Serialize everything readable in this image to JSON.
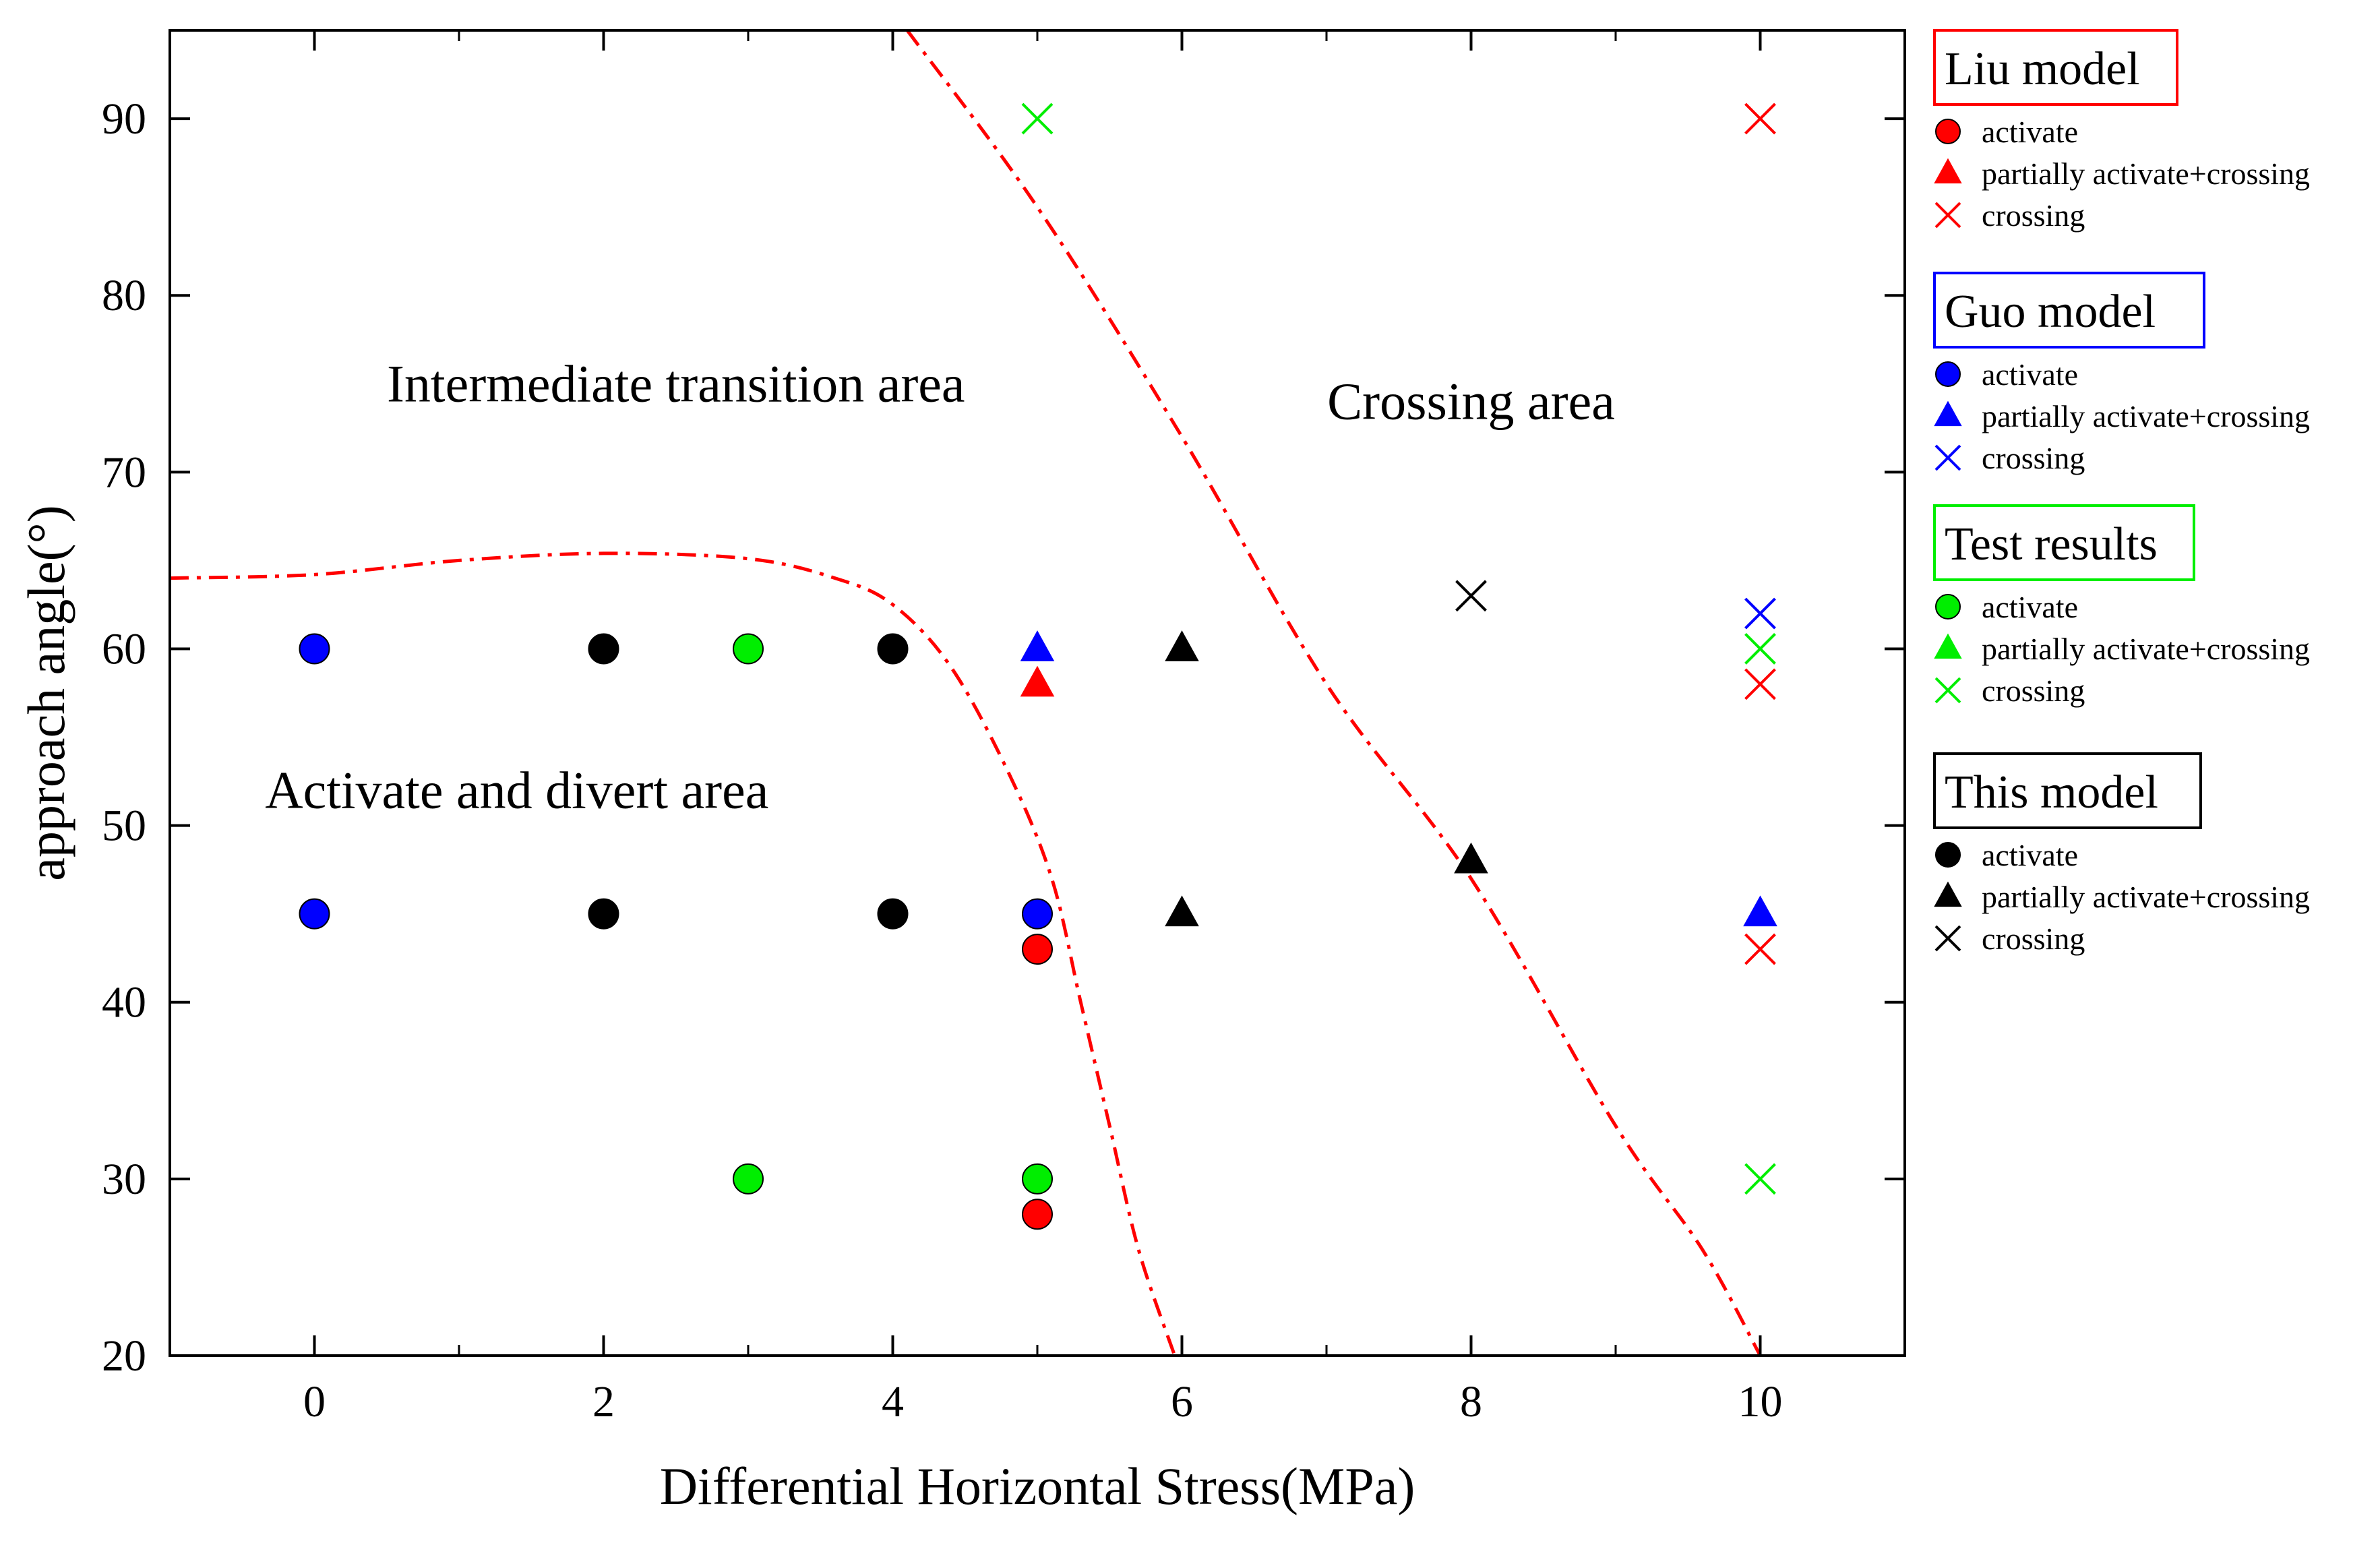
{
  "chart_data": {
    "type": "scatter",
    "xlabel": "Differential Horizontal Stress(MPa)",
    "ylabel": "approach angle(°)",
    "xlim": [
      -1,
      11
    ],
    "ylim": [
      20,
      95
    ],
    "xticks": [
      "0",
      "2",
      "4",
      "6",
      "8",
      "10"
    ],
    "yticks": [
      "20",
      "30",
      "40",
      "50",
      "60",
      "70",
      "80",
      "90"
    ],
    "colors": {
      "liu": "#ff0000",
      "guo": "#0000ff",
      "test": "#00ee00",
      "this": "#000000",
      "boundary": "#ff0000"
    },
    "regions": [
      {
        "label": "Intermediate transition area",
        "x": 2.5,
        "y": 74
      },
      {
        "label": "Crossing area",
        "x": 8.0,
        "y": 73
      },
      {
        "label": "Activate and divert area",
        "x": 1.4,
        "y": 51
      }
    ],
    "boundaries": [
      {
        "name": "activate boundary",
        "points": [
          [
            -1,
            64
          ],
          [
            0,
            64.2
          ],
          [
            1,
            65
          ],
          [
            2,
            65.4
          ],
          [
            3,
            65.1
          ],
          [
            3.6,
            64
          ],
          [
            4,
            62.5
          ],
          [
            4.4,
            59
          ],
          [
            4.8,
            53
          ],
          [
            5.1,
            47
          ],
          [
            5.3,
            40
          ],
          [
            5.5,
            33
          ],
          [
            5.7,
            26
          ],
          [
            5.95,
            20
          ]
        ]
      },
      {
        "name": "crossing boundary",
        "points": [
          [
            4.1,
            95
          ],
          [
            5,
            85
          ],
          [
            6,
            72
          ],
          [
            7,
            58
          ],
          [
            8,
            47
          ],
          [
            9,
            33
          ],
          [
            9.6,
            26
          ],
          [
            10,
            20
          ]
        ]
      }
    ],
    "series": [
      {
        "name": "Liu model",
        "group": "liu",
        "points": [
          {
            "x": 10,
            "y": 90,
            "marker": "crossing"
          },
          {
            "x": 5,
            "y": 58,
            "marker": "partial"
          },
          {
            "x": 10,
            "y": 58,
            "marker": "crossing"
          },
          {
            "x": 5,
            "y": 43,
            "marker": "activate"
          },
          {
            "x": 10,
            "y": 43,
            "marker": "crossing"
          },
          {
            "x": 5,
            "y": 28,
            "marker": "activate"
          }
        ]
      },
      {
        "name": "Guo model",
        "group": "guo",
        "points": [
          {
            "x": 0,
            "y": 60,
            "marker": "activate"
          },
          {
            "x": 0,
            "y": 45,
            "marker": "activate"
          },
          {
            "x": 5,
            "y": 60,
            "marker": "partial"
          },
          {
            "x": 5,
            "y": 45,
            "marker": "activate"
          },
          {
            "x": 10,
            "y": 62,
            "marker": "crossing"
          },
          {
            "x": 10,
            "y": 45,
            "marker": "partial"
          }
        ]
      },
      {
        "name": "Test results",
        "group": "test",
        "points": [
          {
            "x": 5,
            "y": 90,
            "marker": "crossing"
          },
          {
            "x": 3,
            "y": 60,
            "marker": "activate"
          },
          {
            "x": 10,
            "y": 60,
            "marker": "crossing"
          },
          {
            "x": 3,
            "y": 30,
            "marker": "activate"
          },
          {
            "x": 5,
            "y": 30,
            "marker": "activate"
          },
          {
            "x": 10,
            "y": 30,
            "marker": "crossing"
          }
        ]
      },
      {
        "name": "This model",
        "group": "this",
        "points": [
          {
            "x": 2,
            "y": 60,
            "marker": "activate"
          },
          {
            "x": 4,
            "y": 60,
            "marker": "activate"
          },
          {
            "x": 6,
            "y": 60,
            "marker": "partial"
          },
          {
            "x": 2,
            "y": 45,
            "marker": "activate"
          },
          {
            "x": 4,
            "y": 45,
            "marker": "activate"
          },
          {
            "x": 6,
            "y": 45,
            "marker": "partial"
          },
          {
            "x": 8,
            "y": 48,
            "marker": "partial"
          },
          {
            "x": 8,
            "y": 63,
            "marker": "crossing"
          }
        ]
      }
    ],
    "legend": {
      "placement": "right",
      "groups": [
        {
          "title": "Liu model",
          "color_key": "liu",
          "items": [
            {
              "marker": "activate",
              "label": "activate"
            },
            {
              "marker": "partial",
              "label": "partially activate+crossing"
            },
            {
              "marker": "crossing",
              "label": "crossing"
            }
          ]
        },
        {
          "title": "Guo model",
          "color_key": "guo",
          "items": [
            {
              "marker": "activate",
              "label": "activate"
            },
            {
              "marker": "partial",
              "label": "partially activate+crossing"
            },
            {
              "marker": "crossing",
              "label": "crossing"
            }
          ]
        },
        {
          "title": "Test results",
          "color_key": "test",
          "items": [
            {
              "marker": "activate",
              "label": "activate"
            },
            {
              "marker": "partial",
              "label": "partially activate+crossing"
            },
            {
              "marker": "crossing",
              "label": "crossing"
            }
          ]
        },
        {
          "title": "This model",
          "color_key": "this",
          "items": [
            {
              "marker": "activate",
              "label": "activate"
            },
            {
              "marker": "partial",
              "label": "partially activate+crossing"
            },
            {
              "marker": "crossing",
              "label": "crossing"
            }
          ]
        }
      ]
    }
  }
}
